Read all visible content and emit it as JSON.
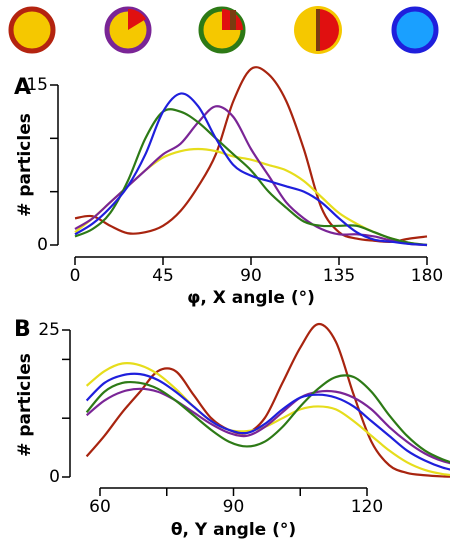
{
  "chart_data": [
    {
      "type": "line",
      "panel_label": "A",
      "xlabel": "φ, X angle (°)",
      "ylabel": "# particles",
      "x": [
        0,
        9,
        18,
        27,
        36,
        45,
        54,
        63,
        72,
        81,
        90,
        99,
        108,
        117,
        126,
        135,
        144,
        153,
        162,
        171,
        180
      ],
      "xlim": [
        0,
        180
      ],
      "xticks": [
        0,
        45,
        90,
        135,
        180
      ],
      "ylim": [
        0,
        15
      ],
      "yticks": [
        0,
        15
      ],
      "yminorticks": [
        5,
        10
      ],
      "series": [
        {
          "color": "#a8240f",
          "values": [
            2.5,
            2.7,
            1.8,
            1.1,
            1.2,
            1.8,
            3.2,
            5.5,
            8.5,
            13.5,
            16.5,
            16,
            13.5,
            9,
            3.5,
            1.2,
            0.6,
            0.4,
            0.3,
            0.6,
            0.8
          ]
        },
        {
          "color": "#e6dd1c",
          "values": [
            1.2,
            2.5,
            4,
            5.5,
            7,
            8.2,
            8.8,
            9,
            8.8,
            8.3,
            8,
            7.5,
            7,
            6,
            4.5,
            3,
            2,
            1.2,
            0.6,
            0.2,
            0
          ]
        },
        {
          "color": "#7a2596",
          "values": [
            1.5,
            2.5,
            4,
            5.5,
            7,
            8.5,
            9.5,
            11.5,
            13,
            12,
            9,
            6.5,
            4,
            2.5,
            1.5,
            1,
            1,
            0.8,
            0.4,
            0.1,
            0
          ]
        },
        {
          "color": "#2d7a16",
          "values": [
            0.8,
            1.5,
            3,
            6,
            10,
            12.5,
            12.5,
            11.5,
            10,
            8.5,
            7,
            5,
            3.5,
            2.2,
            1.8,
            1.8,
            1.8,
            1.2,
            0.6,
            0.2,
            0
          ]
        },
        {
          "color": "#1f1fdc",
          "values": [
            1,
            2,
            3.5,
            5.5,
            8.5,
            12.5,
            14.2,
            13,
            10,
            7.5,
            6.5,
            6,
            5.5,
            5,
            4,
            2.5,
            1.2,
            0.5,
            0.3,
            0.1,
            0
          ]
        }
      ]
    },
    {
      "type": "line",
      "panel_label": "B",
      "xlabel": "θ, Y angle (°)",
      "ylabel": "# particles",
      "x": [
        57,
        61,
        65,
        69,
        73,
        77,
        81,
        85,
        89,
        93,
        97,
        101,
        105,
        109,
        113,
        117,
        121,
        125,
        129,
        133,
        137,
        141
      ],
      "xlim": [
        57,
        141
      ],
      "xticks": [
        60,
        90,
        120
      ],
      "xminorticks": [
        75,
        105
      ],
      "ylim": [
        0,
        25
      ],
      "yticks": [
        0,
        25
      ],
      "yminorticks": [
        10,
        20
      ],
      "series": [
        {
          "color": "#a8240f",
          "values": [
            3.5,
            7,
            11,
            14.5,
            18,
            18,
            14,
            10,
            8,
            7.5,
            10,
            16,
            22,
            26,
            23,
            14,
            6,
            2,
            0.7,
            0.3,
            0.1,
            0
          ]
        },
        {
          "color": "#e6dd1c",
          "values": [
            15.5,
            18,
            19.3,
            19,
            17.5,
            15,
            12,
            9.5,
            8,
            7.8,
            8.5,
            10,
            11.5,
            12,
            11.5,
            9.5,
            7,
            4.5,
            2.5,
            1.2,
            0.5,
            0.2
          ]
        },
        {
          "color": "#7a2596",
          "values": [
            10.5,
            13,
            14.5,
            15,
            14.5,
            13,
            11,
            9,
            7.5,
            7,
            8.5,
            11,
            13.5,
            14.5,
            14.5,
            13.5,
            11.5,
            8.5,
            6,
            4,
            2.7,
            2
          ]
        },
        {
          "color": "#2d7a16",
          "values": [
            11,
            14.5,
            16,
            16,
            15,
            13,
            10.5,
            8,
            6,
            5.2,
            6,
            8.5,
            12,
            15,
            17,
            17,
            14.5,
            10.5,
            7,
            4.5,
            3,
            2
          ]
        },
        {
          "color": "#1f1fdc",
          "values": [
            13,
            16,
            17.3,
            17.5,
            16.5,
            14.5,
            12,
            9.5,
            8,
            7.5,
            9,
            11.5,
            13.5,
            14,
            13.5,
            12,
            9.5,
            7,
            4.5,
            2.8,
            1.6,
            0.9
          ]
        }
      ]
    }
  ]
}
